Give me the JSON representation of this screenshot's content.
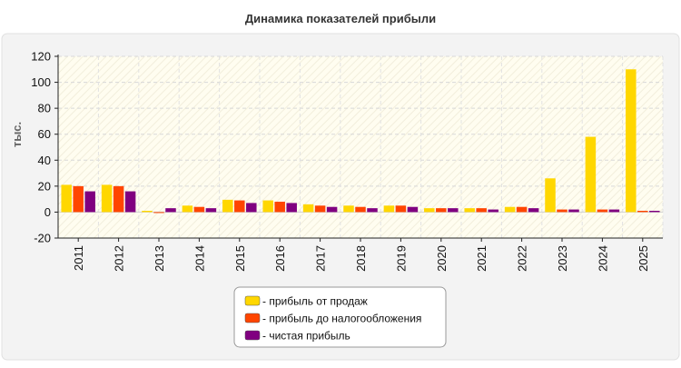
{
  "chart_data": {
    "type": "bar",
    "title": "Динамика показателей прибыли",
    "xlabel": "",
    "ylabel": "тыс.",
    "ylim": [
      -20,
      120
    ],
    "yticks": [
      -20,
      0,
      20,
      40,
      60,
      80,
      100,
      120
    ],
    "grid": true,
    "legend_position": "bottom",
    "categories": [
      "2011",
      "2012",
      "2013",
      "2014",
      "2015",
      "2016",
      "2017",
      "2018",
      "2019",
      "2020",
      "2021",
      "2022",
      "2023",
      "2024",
      "2025"
    ],
    "series": [
      {
        "name": "- прибыль от продаж",
        "color": "#FFD700",
        "values": [
          21,
          21,
          1,
          5,
          9.5,
          9,
          6,
          5,
          5,
          3,
          3,
          4,
          26,
          58,
          110
        ]
      },
      {
        "name": "- прибыль до налогообложения",
        "color": "#FF4500",
        "values": [
          20,
          20,
          -0.5,
          4,
          9,
          8,
          5,
          4,
          5,
          3,
          3,
          4,
          2,
          2,
          1
        ]
      },
      {
        "name": "- чистая прибыль",
        "color": "#800080",
        "values": [
          16,
          16,
          3,
          3,
          7,
          7,
          4,
          3,
          4,
          3,
          2,
          3,
          2,
          2,
          1
        ]
      }
    ]
  }
}
